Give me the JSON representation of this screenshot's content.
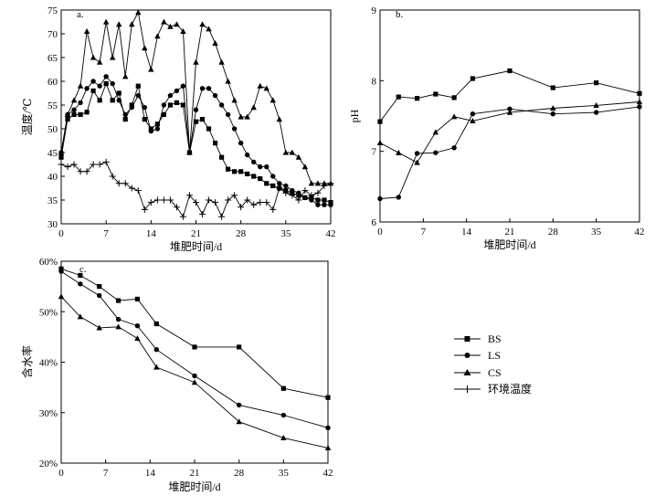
{
  "legend": {
    "items": [
      {
        "label": "BS",
        "marker": "square"
      },
      {
        "label": "LS",
        "marker": "circle"
      },
      {
        "label": "CS",
        "marker": "triangle"
      },
      {
        "label": "环境温度",
        "marker": "plus"
      }
    ]
  },
  "chart_data": [
    {
      "type": "line",
      "panel": "a.",
      "xlabel": "堆肥时间/d",
      "ylabel": "温度/℃",
      "xlim": [
        0,
        42
      ],
      "ylim": [
        30,
        75
      ],
      "xticks": [
        0,
        7,
        14,
        21,
        28,
        35,
        42
      ],
      "yticks": [
        30,
        35,
        40,
        45,
        50,
        55,
        60,
        65,
        70,
        75
      ],
      "series": [
        {
          "name": "BS",
          "marker": "square",
          "x": [
            0,
            1,
            2,
            3,
            4,
            5,
            6,
            7,
            8,
            9,
            10,
            11,
            12,
            13,
            14,
            15,
            16,
            17,
            18,
            19,
            20,
            21,
            22,
            23,
            24,
            25,
            26,
            27,
            28,
            29,
            30,
            31,
            32,
            33,
            34,
            35,
            36,
            37,
            38,
            39,
            40,
            41,
            42
          ],
          "y": [
            44,
            52,
            53,
            53,
            53.5,
            58,
            56,
            59.5,
            56,
            57.5,
            52,
            55,
            59,
            52,
            50,
            51,
            53,
            55,
            55.5,
            55,
            45,
            51.5,
            52,
            50,
            47,
            44,
            41.5,
            41,
            41,
            40.5,
            40,
            39.5,
            38.5,
            38,
            37.5,
            37,
            36.5,
            36,
            35.5,
            35.5,
            35,
            35,
            34.5
          ]
        },
        {
          "name": "LS",
          "marker": "circle",
          "x": [
            0,
            1,
            2,
            3,
            4,
            5,
            6,
            7,
            8,
            9,
            10,
            11,
            12,
            13,
            14,
            15,
            16,
            17,
            18,
            19,
            20,
            21,
            22,
            23,
            24,
            25,
            26,
            27,
            28,
            29,
            30,
            31,
            32,
            33,
            34,
            35,
            36,
            37,
            38,
            39,
            40,
            41,
            42
          ],
          "y": [
            45,
            53,
            54,
            55.5,
            58.5,
            60,
            59,
            61,
            59.5,
            56,
            53,
            54.5,
            57,
            54.5,
            49.5,
            50,
            55,
            57,
            58,
            59,
            45,
            54,
            58.5,
            58.5,
            57,
            55,
            53,
            50,
            47,
            44.5,
            43,
            42,
            42,
            40,
            38.5,
            38,
            37,
            36.5,
            35.5,
            35,
            34,
            34,
            34
          ]
        },
        {
          "name": "CS",
          "marker": "triangle",
          "x": [
            0,
            1,
            2,
            3,
            4,
            5,
            6,
            7,
            8,
            9,
            10,
            11,
            12,
            13,
            14,
            15,
            16,
            17,
            18,
            19,
            20,
            21,
            22,
            23,
            24,
            25,
            26,
            27,
            28,
            29,
            30,
            31,
            32,
            33,
            34,
            35,
            36,
            37,
            38,
            39,
            40,
            41,
            42
          ],
          "y": [
            45,
            53,
            56,
            59,
            70.5,
            65,
            64,
            72.5,
            65,
            72,
            61,
            72,
            74.5,
            67,
            62.5,
            69.5,
            72.5,
            71.5,
            72,
            70.5,
            45,
            64,
            72,
            71,
            68,
            64,
            60,
            56,
            52.5,
            52.5,
            54.5,
            59,
            58.5,
            56,
            52,
            45,
            45,
            44,
            42,
            38.5,
            38.5,
            38.5,
            38.5
          ]
        },
        {
          "name": "环境温度",
          "marker": "plus",
          "x": [
            0,
            1,
            2,
            3,
            4,
            5,
            6,
            7,
            8,
            9,
            10,
            11,
            12,
            13,
            14,
            15,
            16,
            17,
            18,
            19,
            20,
            21,
            22,
            23,
            24,
            25,
            26,
            27,
            28,
            29,
            30,
            31,
            32,
            33,
            34,
            35,
            36,
            37,
            38,
            39,
            40,
            41,
            42
          ],
          "y": [
            42.5,
            42,
            42.5,
            41,
            41,
            42.5,
            42.5,
            43,
            40,
            38.5,
            38.5,
            37.5,
            37,
            33,
            34.5,
            35,
            35,
            35,
            33.5,
            31.5,
            36,
            34.5,
            32,
            35,
            34.5,
            31.5,
            35,
            36,
            33.5,
            35,
            34,
            34.5,
            34.5,
            33,
            37.5,
            36.5,
            36,
            35,
            37,
            36,
            36.5,
            38,
            38.5
          ]
        }
      ]
    },
    {
      "type": "line",
      "panel": "b.",
      "xlabel": "堆肥时间/d",
      "ylabel": "pH",
      "xlim": [
        0,
        42
      ],
      "ylim": [
        6,
        9
      ],
      "xticks": [
        0,
        7,
        14,
        21,
        28,
        35,
        42
      ],
      "yticks": [
        6,
        7,
        8,
        9
      ],
      "series": [
        {
          "name": "BS",
          "marker": "square",
          "x": [
            0,
            3,
            6,
            9,
            12,
            15,
            21,
            28,
            35,
            42
          ],
          "y": [
            7.42,
            7.77,
            7.75,
            7.81,
            7.76,
            8.03,
            8.14,
            7.9,
            7.97,
            7.82
          ]
        },
        {
          "name": "LS",
          "marker": "circle",
          "x": [
            0,
            3,
            6,
            9,
            12,
            15,
            21,
            28,
            35,
            42
          ],
          "y": [
            6.33,
            6.35,
            6.97,
            6.98,
            7.05,
            7.53,
            7.6,
            7.53,
            7.55,
            7.63
          ]
        },
        {
          "name": "CS",
          "marker": "triangle",
          "x": [
            0,
            3,
            6,
            9,
            12,
            15,
            21,
            28,
            35,
            42
          ],
          "y": [
            7.12,
            6.98,
            6.84,
            7.27,
            7.49,
            7.43,
            7.55,
            7.61,
            7.65,
            7.7
          ]
        }
      ]
    },
    {
      "type": "line",
      "panel": "c.",
      "xlabel": "堆肥时间/d",
      "ylabel": "含水率",
      "xlim": [
        0,
        42
      ],
      "ylim": [
        20,
        60
      ],
      "xticks": [
        0,
        7,
        14,
        21,
        28,
        35,
        42
      ],
      "yticks": [
        20,
        30,
        40,
        50,
        60
      ],
      "ytick_labels": [
        "20%",
        "30%",
        "40%",
        "50%",
        "60%"
      ],
      "series": [
        {
          "name": "BS",
          "marker": "square",
          "x": [
            0,
            3,
            6,
            9,
            12,
            15,
            21,
            28,
            35,
            42
          ],
          "y": [
            58.5,
            57.2,
            55,
            52.2,
            52.5,
            47.6,
            43,
            43,
            34.8,
            33
          ]
        },
        {
          "name": "LS",
          "marker": "circle",
          "x": [
            0,
            3,
            6,
            9,
            12,
            15,
            21,
            28,
            35,
            42
          ],
          "y": [
            58,
            55.5,
            53.2,
            48.5,
            47.2,
            42.5,
            37.3,
            31.5,
            29.5,
            27
          ]
        },
        {
          "name": "CS",
          "marker": "triangle",
          "x": [
            0,
            3,
            6,
            9,
            12,
            15,
            21,
            28,
            35,
            42
          ],
          "y": [
            53,
            49,
            46.8,
            47,
            44.7,
            39,
            36,
            28.2,
            25,
            23
          ]
        }
      ]
    }
  ]
}
